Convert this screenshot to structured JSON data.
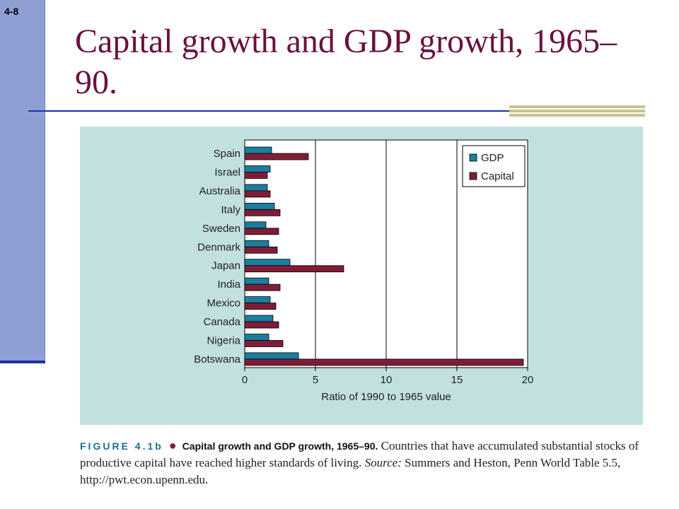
{
  "slide": {
    "number": "4-8",
    "title": "Capital growth and GDP growth, 1965–90."
  },
  "caption": {
    "figure_label": "FIGURE 4.1b",
    "figure_title": "Capital growth and GDP growth, 1965–90.",
    "text_before_source": "Countries that have accumulated substantial stocks of productive capital have reached higher standards of living.",
    "source_label": "Source:",
    "source_text": "Summers and Heston, Penn World Table 5.5, http://pwt.econ.upenn.edu."
  },
  "colors": {
    "gdp": "#1a7fa0",
    "capital": "#7f1d38",
    "panel": "#c2e0df",
    "title": "#6b1040"
  },
  "chart_data": {
    "type": "bar",
    "orientation": "horizontal",
    "categories": [
      "Spain",
      "Israel",
      "Australia",
      "Italy",
      "Sweden",
      "Denmark",
      "Japan",
      "India",
      "Mexico",
      "Canada",
      "Nigeria",
      "Botswana"
    ],
    "series": [
      {
        "name": "GDP",
        "values": [
          1.9,
          1.8,
          1.6,
          2.1,
          1.5,
          1.7,
          3.2,
          1.7,
          1.8,
          2.0,
          1.7,
          3.8
        ]
      },
      {
        "name": "Capital",
        "values": [
          4.5,
          1.6,
          1.8,
          2.5,
          2.4,
          2.3,
          7.0,
          2.5,
          2.2,
          2.4,
          2.7,
          19.7
        ]
      }
    ],
    "xlabel": "Ratio of 1990 to 1965 value",
    "ylabel": "",
    "xlim": [
      0,
      20
    ],
    "xticks": [
      "0",
      "5",
      "10",
      "15",
      "20"
    ],
    "grid": "vertical",
    "legend": "top-right"
  }
}
